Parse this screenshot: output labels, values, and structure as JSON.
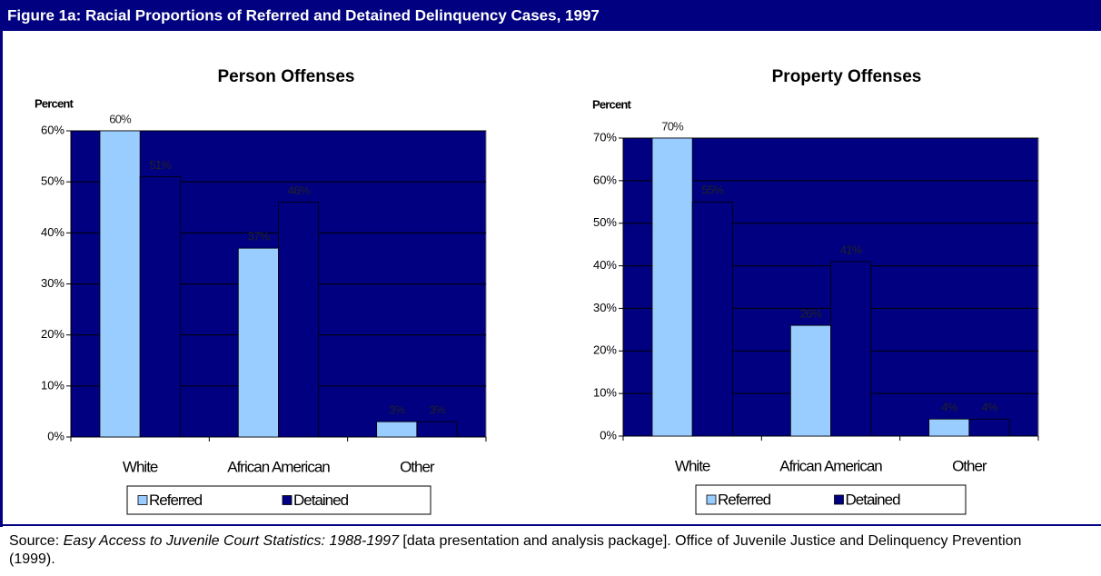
{
  "title": "Figure 1a:  Racial Proportions of Referred and Detained Delinquency Cases, 1997",
  "source": {
    "prefix": "Source: ",
    "italic": "Easy Access to Juvenile Court Statistics: 1988-1997",
    "suffix": " [data presentation and analysis package].  Office of Juvenile Justice and Delinquency Prevention (1999)."
  },
  "chart_data": [
    {
      "type": "bar",
      "title": "Person Offenses",
      "ylabel": "Percent",
      "categories": [
        "White",
        "African American",
        "Other"
      ],
      "series": [
        {
          "name": "Referred",
          "color": "#99ccff",
          "values": [
            60,
            37,
            3
          ],
          "value_labels": [
            "60%",
            "37%",
            "3%"
          ]
        },
        {
          "name": "Detained",
          "color": "#000080",
          "values": [
            51,
            46,
            3
          ],
          "value_labels": [
            "51%",
            "46%",
            "3%"
          ]
        }
      ],
      "ylim": [
        0,
        60
      ],
      "yticks": [
        {
          "value": 0,
          "label": "0%"
        },
        {
          "value": 10,
          "label": "10%"
        },
        {
          "value": 20,
          "label": "20%"
        },
        {
          "value": 30,
          "label": "30%"
        },
        {
          "value": 40,
          "label": "40%"
        },
        {
          "value": 50,
          "label": "50%"
        },
        {
          "value": 60,
          "label": "60%"
        }
      ],
      "grid": true,
      "plot_background": "#000080",
      "legend": "bottom"
    },
    {
      "type": "bar",
      "title": "Property Offenses",
      "ylabel": "Percent",
      "categories": [
        "White",
        "African American",
        "Other"
      ],
      "series": [
        {
          "name": "Referred",
          "color": "#99ccff",
          "values": [
            70,
            26,
            4
          ],
          "value_labels": [
            "70%",
            "26%",
            "4%"
          ]
        },
        {
          "name": "Detained",
          "color": "#000080",
          "values": [
            55,
            41,
            4
          ],
          "value_labels": [
            "55%",
            "41%",
            "4%"
          ]
        }
      ],
      "ylim": [
        0,
        70
      ],
      "yticks": [
        {
          "value": 0,
          "label": "0%"
        },
        {
          "value": 10,
          "label": "10%"
        },
        {
          "value": 20,
          "label": "20%"
        },
        {
          "value": 30,
          "label": "30%"
        },
        {
          "value": 40,
          "label": "40%"
        },
        {
          "value": 50,
          "label": "50%"
        },
        {
          "value": 60,
          "label": "60%"
        },
        {
          "value": 70,
          "label": "70%"
        }
      ],
      "grid": true,
      "plot_background": "#000080",
      "legend": "bottom"
    }
  ]
}
